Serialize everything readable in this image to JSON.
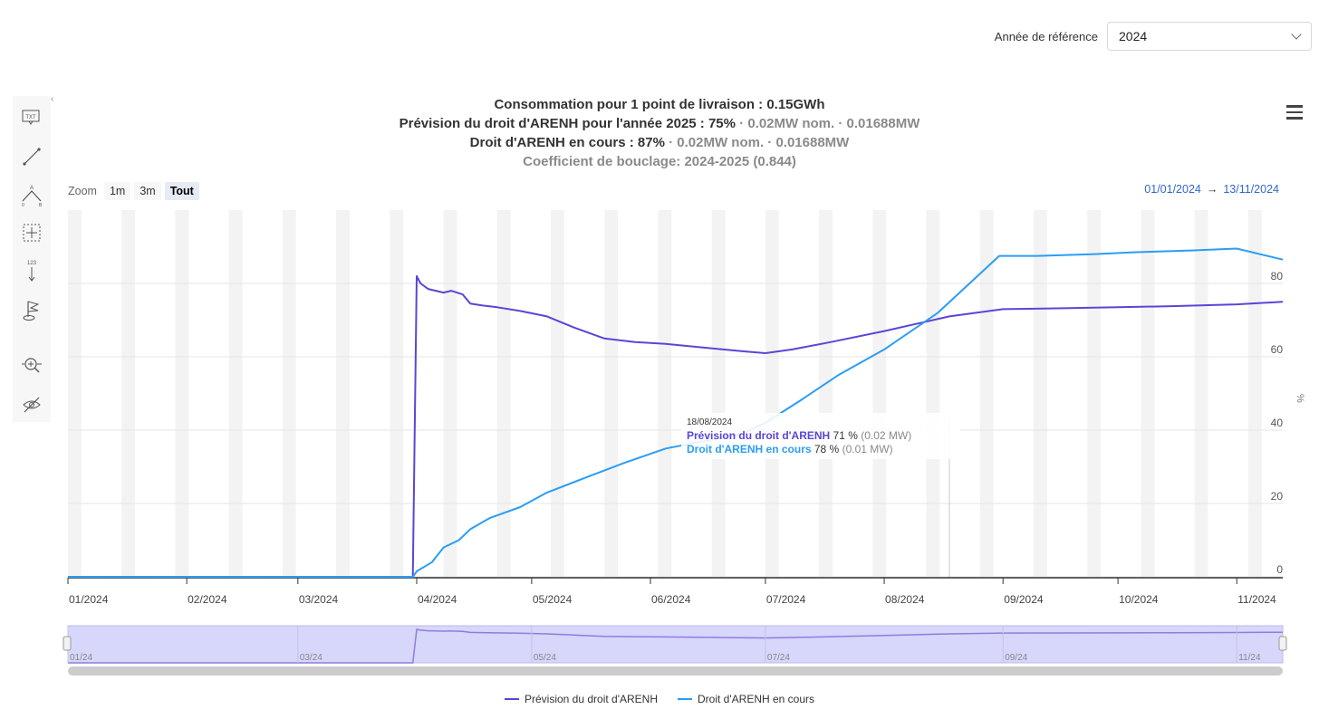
{
  "reference_year": {
    "label": "Année de référence",
    "value": "2024"
  },
  "titles": {
    "line1": "Consommation pour 1 point de livraison : 0.15GWh",
    "line2_main": "Prévision du droit d'ARENH pour l'année 2025 : 75%",
    "line2_grey": " · 0.02MW nom. · 0.01688MW",
    "line3_main": "Droit d'ARENH en cours : 87%",
    "line3_grey": " · 0.02MW nom. · 0.01688MW",
    "line4": "Coefficient de bouclage: 2024-2025 (0.844)"
  },
  "zoom": {
    "label": "Zoom",
    "buttons": [
      "1m",
      "3m",
      "Tout"
    ],
    "active": "Tout"
  },
  "range": {
    "from": "01/01/2024",
    "arrow": "→",
    "to": "13/11/2024"
  },
  "tooltip": {
    "date": "18/08/2024",
    "s1_name": "Prévision du droit d'ARENH",
    "s1_value": "71 %",
    "s1_extra": "(0.02 MW)",
    "s2_name": "Droit d'ARENH en cours",
    "s2_value": "78 %",
    "s2_extra": "(0.01 MW)"
  },
  "toolbar_icons": [
    "text-annotation-icon",
    "line-icon",
    "angle-measure-icon",
    "crosshair-icon",
    "vertical-counter-icon",
    "flag-icon",
    "zoom-pan-icon",
    "hide-icon"
  ],
  "chart_data": {
    "type": "line",
    "xlabel": "",
    "ylabel": "%",
    "xlim": [
      "2024-01-01",
      "2024-11-13"
    ],
    "ylim": [
      0,
      100
    ],
    "yticks": [
      0,
      20,
      40,
      60,
      80
    ],
    "xticks": [
      "01/2024",
      "02/2024",
      "03/2024",
      "04/2024",
      "05/2024",
      "06/2024",
      "07/2024",
      "08/2024",
      "09/2024",
      "10/2024",
      "11/2024"
    ],
    "navigator_ticks": [
      "01/24",
      "03/24",
      "05/24",
      "07/24",
      "09/24",
      "11/24"
    ],
    "legend_position": "bottom-center",
    "grid": true,
    "series": [
      {
        "name": "Prévision du droit d'ARENH",
        "color": "#5b45d6",
        "x": [
          "2024-01-01",
          "2024-03-31",
          "2024-04-01",
          "2024-04-02",
          "2024-04-04",
          "2024-04-06",
          "2024-04-08",
          "2024-04-10",
          "2024-04-13",
          "2024-04-15",
          "2024-04-18",
          "2024-04-22",
          "2024-04-28",
          "2024-05-05",
          "2024-05-12",
          "2024-05-20",
          "2024-05-28",
          "2024-06-05",
          "2024-06-15",
          "2024-06-25",
          "2024-07-01",
          "2024-07-08",
          "2024-07-18",
          "2024-08-01",
          "2024-08-18",
          "2024-09-01",
          "2024-09-15",
          "2024-10-01",
          "2024-10-15",
          "2024-11-01",
          "2024-11-13"
        ],
        "y": [
          0,
          0,
          82,
          80,
          78.5,
          78,
          77.5,
          78,
          77,
          74.5,
          74,
          73.5,
          72.5,
          71,
          68,
          65,
          64,
          63.5,
          62.5,
          61.5,
          61,
          62,
          64,
          67,
          71,
          73,
          73.2,
          73.5,
          73.8,
          74.3,
          75
        ]
      },
      {
        "name": "Droit d'ARENH en cours",
        "color": "#2b9df4",
        "x": [
          "2024-01-01",
          "2024-03-31",
          "2024-04-01",
          "2024-04-05",
          "2024-04-08",
          "2024-04-12",
          "2024-04-15",
          "2024-04-20",
          "2024-04-28",
          "2024-05-05",
          "2024-05-15",
          "2024-05-25",
          "2024-06-05",
          "2024-06-15",
          "2024-06-25",
          "2024-07-01",
          "2024-07-10",
          "2024-07-20",
          "2024-08-01",
          "2024-08-15",
          "2024-08-31",
          "2024-09-10",
          "2024-09-25",
          "2024-10-05",
          "2024-10-20",
          "2024-11-01",
          "2024-11-13"
        ],
        "y": [
          0,
          0,
          1.5,
          4,
          8,
          10,
          13,
          16,
          19,
          23,
          27,
          31,
          35,
          37,
          39,
          42,
          48,
          55,
          62,
          72,
          87.5,
          87.5,
          88,
          88.5,
          89,
          89.5,
          86.5
        ]
      }
    ]
  }
}
